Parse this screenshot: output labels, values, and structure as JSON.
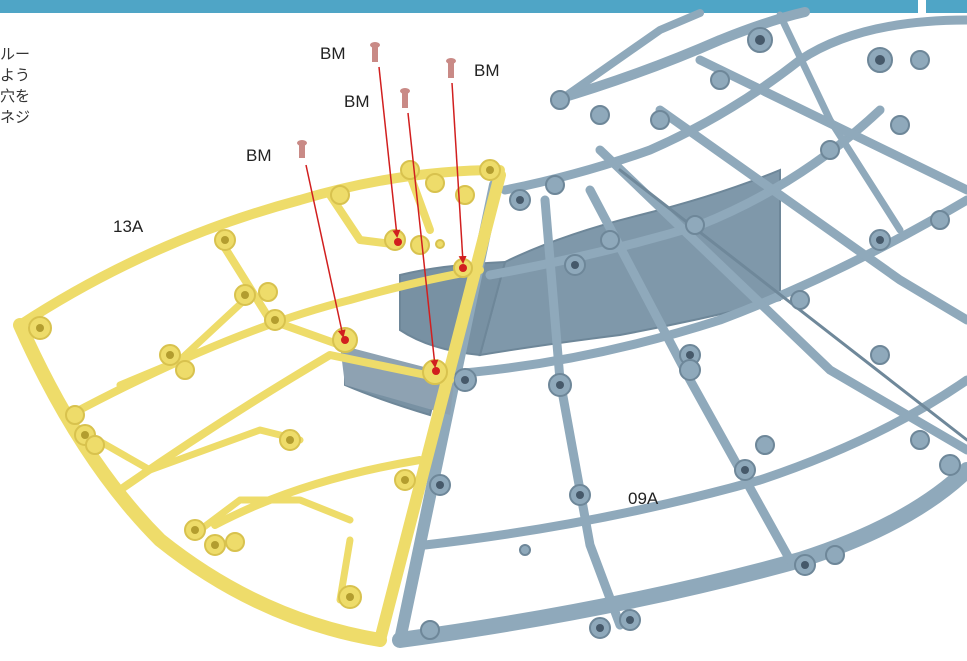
{
  "instruction_text": [
    "ルー",
    "よう",
    "穴を",
    "ネジ"
  ],
  "labels": {
    "part_yellow": "13A",
    "part_blue": "09A",
    "screw_1": "BM",
    "screw_2": "BM",
    "screw_3": "BM",
    "screw_4": "BM"
  },
  "colors": {
    "header_bar": "#4fa5c6",
    "yellow_part": "#eedc6a",
    "blue_part": "#8fa9bb",
    "screw": "#c98a86",
    "arrow": "#d11f1f"
  }
}
